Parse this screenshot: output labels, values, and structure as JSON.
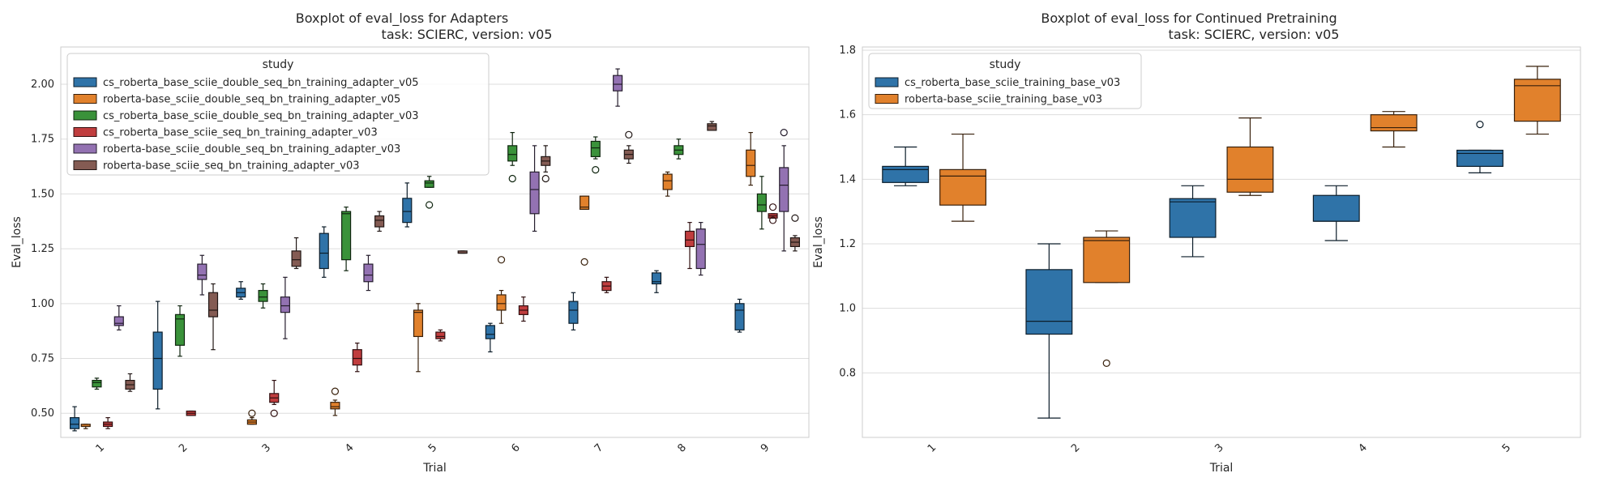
{
  "chart_data": [
    {
      "type": "boxplot",
      "title": "Boxplot of eval_loss for Adapters",
      "subtitle": "task: SCIERC, version: v05",
      "xlabel": "Trial",
      "ylabel": "Eval_loss",
      "ylim": [
        0.39,
        2.17
      ],
      "yticks": [
        0.5,
        0.75,
        1.0,
        1.25,
        1.5,
        1.75,
        2.0
      ],
      "ytick_labels": [
        "0.50",
        "0.75",
        "1.00",
        "1.25",
        "1.50",
        "1.75",
        "2.00"
      ],
      "categories": [
        "1",
        "2",
        "3",
        "4",
        "5",
        "6",
        "7",
        "8",
        "9"
      ],
      "grid": true,
      "legend": {
        "title": "study",
        "position": "top-left"
      },
      "series": [
        {
          "name": "cs_roberta_base_sciie_double_seq_bn_training_adapter_v05",
          "color": "#2f73a8",
          "boxes": [
            {
              "whislo": 0.42,
              "q1": 0.43,
              "med": 0.45,
              "q3": 0.48,
              "whishi": 0.53,
              "fliers": []
            },
            {
              "whislo": 0.52,
              "q1": 0.61,
              "med": 0.75,
              "q3": 0.87,
              "whishi": 1.01,
              "fliers": []
            },
            {
              "whislo": 1.02,
              "q1": 1.03,
              "med": 1.05,
              "q3": 1.07,
              "whishi": 1.1,
              "fliers": []
            },
            {
              "whislo": 1.12,
              "q1": 1.16,
              "med": 1.23,
              "q3": 1.32,
              "whishi": 1.35,
              "fliers": []
            },
            {
              "whislo": 1.35,
              "q1": 1.37,
              "med": 1.42,
              "q3": 1.48,
              "whishi": 1.55,
              "fliers": []
            },
            {
              "whislo": 0.78,
              "q1": 0.84,
              "med": 0.86,
              "q3": 0.9,
              "whishi": 0.91,
              "fliers": []
            },
            {
              "whislo": 0.88,
              "q1": 0.91,
              "med": 0.97,
              "q3": 1.01,
              "whishi": 1.05,
              "fliers": []
            },
            {
              "whislo": 1.05,
              "q1": 1.09,
              "med": 1.1,
              "q3": 1.14,
              "whishi": 1.15,
              "fliers": []
            },
            {
              "whislo": 0.87,
              "q1": 0.88,
              "med": 0.97,
              "q3": 1.0,
              "whishi": 1.02,
              "fliers": []
            }
          ]
        },
        {
          "name": "roberta-base_sciie_double_seq_bn_training_adapter_v05",
          "color": "#e1812c",
          "boxes": [
            {
              "whislo": 0.43,
              "q1": 0.44,
              "med": 0.44,
              "q3": 0.45,
              "whishi": 0.45,
              "fliers": []
            },
            null,
            {
              "whislo": 0.45,
              "q1": 0.45,
              "med": 0.46,
              "q3": 0.47,
              "whishi": 0.48,
              "fliers": [
                0.5
              ]
            },
            {
              "whislo": 0.49,
              "q1": 0.52,
              "med": 0.53,
              "q3": 0.55,
              "whishi": 0.56,
              "fliers": [
                0.6
              ]
            },
            {
              "whislo": 0.69,
              "q1": 0.85,
              "med": 0.96,
              "q3": 0.97,
              "whishi": 1.0,
              "fliers": []
            },
            {
              "whislo": 0.91,
              "q1": 0.97,
              "med": 1.0,
              "q3": 1.04,
              "whishi": 1.06,
              "fliers": [
                1.2
              ]
            },
            {
              "whislo": 1.43,
              "q1": 1.43,
              "med": 1.44,
              "q3": 1.49,
              "whishi": 1.49,
              "fliers": [
                1.19
              ]
            },
            {
              "whislo": 1.49,
              "q1": 1.52,
              "med": 1.56,
              "q3": 1.59,
              "whishi": 1.6,
              "fliers": []
            },
            {
              "whislo": 1.54,
              "q1": 1.58,
              "med": 1.63,
              "q3": 1.7,
              "whishi": 1.78,
              "fliers": []
            }
          ]
        },
        {
          "name": "cs_roberta_base_sciie_double_seq_bn_training_adapter_v03",
          "color": "#3a923a",
          "boxes": [
            {
              "whislo": 0.61,
              "q1": 0.62,
              "med": 0.64,
              "q3": 0.65,
              "whishi": 0.66,
              "fliers": []
            },
            {
              "whislo": 0.76,
              "q1": 0.81,
              "med": 0.93,
              "q3": 0.95,
              "whishi": 0.99,
              "fliers": []
            },
            {
              "whislo": 0.98,
              "q1": 1.01,
              "med": 1.03,
              "q3": 1.06,
              "whishi": 1.09,
              "fliers": []
            },
            {
              "whislo": 1.15,
              "q1": 1.2,
              "med": 1.41,
              "q3": 1.42,
              "whishi": 1.44,
              "fliers": []
            },
            {
              "whislo": 1.53,
              "q1": 1.53,
              "med": 1.55,
              "q3": 1.56,
              "whishi": 1.58,
              "fliers": [
                1.45
              ]
            },
            {
              "whislo": 1.63,
              "q1": 1.65,
              "med": 1.68,
              "q3": 1.72,
              "whishi": 1.78,
              "fliers": [
                1.57
              ]
            },
            {
              "whislo": 1.66,
              "q1": 1.67,
              "med": 1.71,
              "q3": 1.74,
              "whishi": 1.76,
              "fliers": [
                1.61
              ]
            },
            {
              "whislo": 1.66,
              "q1": 1.68,
              "med": 1.7,
              "q3": 1.72,
              "whishi": 1.75,
              "fliers": []
            },
            {
              "whislo": 1.34,
              "q1": 1.42,
              "med": 1.45,
              "q3": 1.5,
              "whishi": 1.58,
              "fliers": []
            }
          ]
        },
        {
          "name": "cs_roberta_base_sciie_seq_bn_training_adapter_v03",
          "color": "#c03d3e",
          "boxes": [
            {
              "whislo": 0.43,
              "q1": 0.44,
              "med": 0.45,
              "q3": 0.46,
              "whishi": 0.48,
              "fliers": []
            },
            {
              "whislo": 0.49,
              "q1": 0.49,
              "med": 0.5,
              "q3": 0.51,
              "whishi": 0.51,
              "fliers": []
            },
            {
              "whislo": 0.54,
              "q1": 0.55,
              "med": 0.57,
              "q3": 0.59,
              "whishi": 0.65,
              "fliers": [
                0.5
              ]
            },
            {
              "whislo": 0.69,
              "q1": 0.72,
              "med": 0.75,
              "q3": 0.79,
              "whishi": 0.82,
              "fliers": []
            },
            {
              "whislo": 0.83,
              "q1": 0.84,
              "med": 0.85,
              "q3": 0.87,
              "whishi": 0.88,
              "fliers": []
            },
            {
              "whislo": 0.92,
              "q1": 0.95,
              "med": 0.97,
              "q3": 0.99,
              "whishi": 1.03,
              "fliers": []
            },
            {
              "whislo": 1.05,
              "q1": 1.06,
              "med": 1.08,
              "q3": 1.1,
              "whishi": 1.12,
              "fliers": []
            },
            {
              "whislo": 1.16,
              "q1": 1.26,
              "med": 1.29,
              "q3": 1.33,
              "whishi": 1.37,
              "fliers": []
            },
            {
              "whislo": 1.39,
              "q1": 1.39,
              "med": 1.4,
              "q3": 1.41,
              "whishi": 1.41,
              "fliers": [
                1.44,
                1.38
              ]
            }
          ]
        },
        {
          "name": "roberta-base_sciie_double_seq_bn_training_adapter_v03",
          "color": "#9372b2",
          "boxes": [
            {
              "whislo": 0.88,
              "q1": 0.9,
              "med": 0.91,
              "q3": 0.94,
              "whishi": 0.99,
              "fliers": []
            },
            {
              "whislo": 1.04,
              "q1": 1.11,
              "med": 1.13,
              "q3": 1.18,
              "whishi": 1.22,
              "fliers": []
            },
            {
              "whislo": 0.84,
              "q1": 0.96,
              "med": 0.99,
              "q3": 1.03,
              "whishi": 1.12,
              "fliers": []
            },
            {
              "whislo": 1.06,
              "q1": 1.1,
              "med": 1.13,
              "q3": 1.18,
              "whishi": 1.22,
              "fliers": []
            },
            null,
            {
              "whislo": 1.33,
              "q1": 1.41,
              "med": 1.52,
              "q3": 1.6,
              "whishi": 1.72,
              "fliers": []
            },
            {
              "whislo": 1.9,
              "q1": 1.97,
              "med": 2.0,
              "q3": 2.04,
              "whishi": 2.07,
              "fliers": []
            },
            {
              "whislo": 1.13,
              "q1": 1.16,
              "med": 1.27,
              "q3": 1.34,
              "whishi": 1.37,
              "fliers": []
            },
            {
              "whislo": 1.24,
              "q1": 1.42,
              "med": 1.54,
              "q3": 1.62,
              "whishi": 1.72,
              "fliers": [
                1.78
              ]
            }
          ]
        },
        {
          "name": "roberta-base_sciie_seq_bn_training_adapter_v03",
          "color": "#845b53",
          "boxes": [
            {
              "whislo": 0.6,
              "q1": 0.61,
              "med": 0.63,
              "q3": 0.65,
              "whishi": 0.68,
              "fliers": []
            },
            {
              "whislo": 0.79,
              "q1": 0.94,
              "med": 0.97,
              "q3": 1.05,
              "whishi": 1.09,
              "fliers": []
            },
            {
              "whislo": 1.16,
              "q1": 1.17,
              "med": 1.2,
              "q3": 1.24,
              "whishi": 1.3,
              "fliers": []
            },
            {
              "whislo": 1.33,
              "q1": 1.35,
              "med": 1.38,
              "q3": 1.4,
              "whishi": 1.42,
              "fliers": []
            },
            {
              "whislo": 1.23,
              "q1": 1.23,
              "med": 1.23,
              "q3": 1.24,
              "whishi": 1.24,
              "fliers": []
            },
            {
              "whislo": 1.6,
              "q1": 1.63,
              "med": 1.65,
              "q3": 1.67,
              "whishi": 1.72,
              "fliers": [
                1.57
              ]
            },
            {
              "whislo": 1.64,
              "q1": 1.66,
              "med": 1.68,
              "q3": 1.7,
              "whishi": 1.72,
              "fliers": [
                1.77
              ]
            },
            {
              "whislo": 1.79,
              "q1": 1.79,
              "med": 1.81,
              "q3": 1.82,
              "whishi": 1.83,
              "fliers": []
            },
            {
              "whislo": 1.24,
              "q1": 1.26,
              "med": 1.28,
              "q3": 1.3,
              "whishi": 1.31,
              "fliers": [
                1.39
              ]
            }
          ]
        }
      ]
    },
    {
      "type": "boxplot",
      "title": "Boxplot of eval_loss for Continued Pretraining",
      "subtitle": "task: SCIERC, version: v05",
      "xlabel": "Trial",
      "ylabel": "Eval_loss",
      "ylim": [
        0.6,
        1.81
      ],
      "yticks": [
        0.8,
        1.0,
        1.2,
        1.4,
        1.6,
        1.8
      ],
      "ytick_labels": [
        "0.8",
        "1.0",
        "1.2",
        "1.4",
        "1.6",
        "1.8"
      ],
      "categories": [
        "1",
        "2",
        "3",
        "4",
        "5"
      ],
      "grid": true,
      "legend": {
        "title": "study",
        "position": "top-left"
      },
      "series": [
        {
          "name": "cs_roberta_base_sciie_training_base_v03",
          "color": "#2f73a8",
          "boxes": [
            {
              "whislo": 1.38,
              "q1": 1.39,
              "med": 1.43,
              "q3": 1.44,
              "whishi": 1.5,
              "fliers": []
            },
            {
              "whislo": 0.66,
              "q1": 0.92,
              "med": 0.96,
              "q3": 1.12,
              "whishi": 1.2,
              "fliers": []
            },
            {
              "whislo": 1.16,
              "q1": 1.22,
              "med": 1.33,
              "q3": 1.34,
              "whishi": 1.38,
              "fliers": []
            },
            {
              "whislo": 1.21,
              "q1": 1.27,
              "med": 1.27,
              "q3": 1.35,
              "whishi": 1.38,
              "fliers": []
            },
            {
              "whislo": 1.42,
              "q1": 1.44,
              "med": 1.48,
              "q3": 1.49,
              "whishi": 1.49,
              "fliers": [
                1.57
              ]
            }
          ]
        },
        {
          "name": "roberta-base_sciie_training_base_v03",
          "color": "#e1812c",
          "boxes": [
            {
              "whislo": 1.27,
              "q1": 1.32,
              "med": 1.41,
              "q3": 1.43,
              "whishi": 1.54,
              "fliers": []
            },
            {
              "whislo": 1.08,
              "q1": 1.08,
              "med": 1.21,
              "q3": 1.22,
              "whishi": 1.24,
              "fliers": [
                0.83
              ]
            },
            {
              "whislo": 1.35,
              "q1": 1.36,
              "med": 1.4,
              "q3": 1.5,
              "whishi": 1.59,
              "fliers": []
            },
            {
              "whislo": 1.5,
              "q1": 1.55,
              "med": 1.56,
              "q3": 1.6,
              "whishi": 1.61,
              "fliers": []
            },
            {
              "whislo": 1.54,
              "q1": 1.58,
              "med": 1.69,
              "q3": 1.71,
              "whishi": 1.75,
              "fliers": []
            }
          ]
        }
      ]
    }
  ]
}
